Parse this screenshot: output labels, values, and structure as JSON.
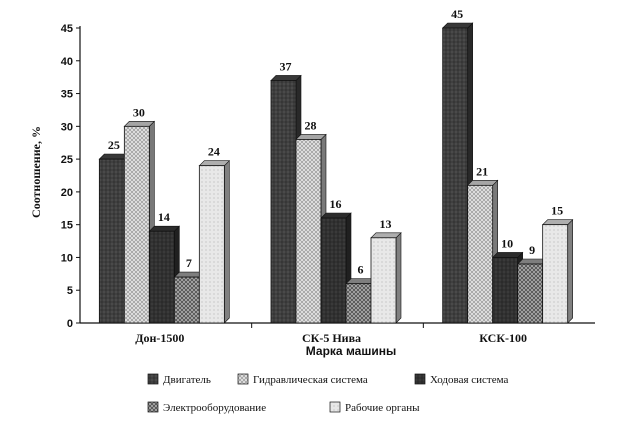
{
  "chart_data": {
    "type": "bar",
    "title": "",
    "xlabel": "Марка машины",
    "ylabel": "Соотношение, %",
    "ylim": [
      0,
      45
    ],
    "yticks": [
      0,
      5,
      10,
      15,
      20,
      25,
      30,
      35,
      40,
      45
    ],
    "categories": [
      "Дон-1500",
      "СК-5 Нива",
      "КСК-100"
    ],
    "series": [
      {
        "name": "Двигатель",
        "values": [
          25,
          37,
          45
        ],
        "color": "#4a4a4a"
      },
      {
        "name": "Гидравлическая система",
        "values": [
          30,
          28,
          21
        ],
        "color": "#dcdcdc"
      },
      {
        "name": "Ходовая система",
        "values": [
          14,
          16,
          10
        ],
        "color": "#3a3a3a"
      },
      {
        "name": "Электрооборудование",
        "values": [
          7,
          6,
          9
        ],
        "color": "#a8a8a8"
      },
      {
        "name": "Рабочие органы",
        "values": [
          24,
          13,
          15
        ],
        "color": "#e8e8e8"
      }
    ],
    "grid": false,
    "legend_position": "bottom"
  }
}
